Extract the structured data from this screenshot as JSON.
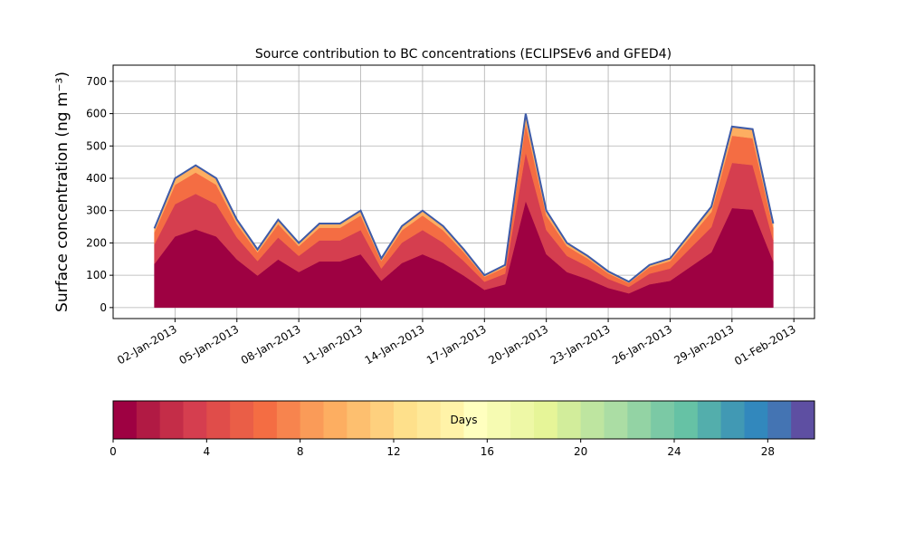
{
  "chart_data": {
    "type": "stacked-area",
    "title": "Source contribution to BC concentrations (ECLIPSEv6 and GFED4)",
    "ylabel": "Surface concentration (ng m⁻³)",
    "x": [
      "2013-01-01",
      "2013-01-02",
      "2013-01-03",
      "2013-01-04",
      "2013-01-05",
      "2013-01-06",
      "2013-01-07",
      "2013-01-08",
      "2013-01-09",
      "2013-01-10",
      "2013-01-11",
      "2013-01-12",
      "2013-01-13",
      "2013-01-14",
      "2013-01-15",
      "2013-01-16",
      "2013-01-17",
      "2013-01-18",
      "2013-01-19",
      "2013-01-20",
      "2013-01-21",
      "2013-01-22",
      "2013-01-23",
      "2013-01-24",
      "2013-01-25",
      "2013-01-26",
      "2013-01-27",
      "2013-01-28",
      "2013-01-29",
      "2013-01-30",
      "2013-01-31"
    ],
    "series": [
      {
        "color": "#9e0142",
        "values": [
          135,
          220,
          242,
          220,
          149,
          99,
          149,
          110,
          143,
          143,
          165,
          83,
          138,
          165,
          138,
          99,
          55,
          72,
          330,
          165,
          110,
          88,
          61,
          44,
          72,
          83,
          127,
          171,
          308,
          303,
          143
        ]
      },
      {
        "color": "#d53e4f",
        "values": [
          61,
          100,
          110,
          100,
          68,
          45,
          68,
          50,
          65,
          65,
          75,
          38,
          63,
          75,
          63,
          45,
          25,
          33,
          150,
          75,
          50,
          40,
          28,
          20,
          33,
          38,
          58,
          78,
          140,
          138,
          65
        ]
      },
      {
        "color": "#f46d43",
        "values": [
          37,
          60,
          66,
          60,
          41,
          27,
          41,
          30,
          39,
          39,
          45,
          23,
          38,
          45,
          38,
          27,
          15,
          20,
          90,
          45,
          30,
          24,
          17,
          12,
          20,
          23,
          35,
          47,
          84,
          83,
          39
        ]
      },
      {
        "color": "#fdae61",
        "values": [
          12,
          20,
          22,
          20,
          14,
          9,
          14,
          10,
          13,
          13,
          15,
          8,
          13,
          15,
          13,
          9,
          5,
          7,
          30,
          15,
          10,
          8,
          6,
          4,
          7,
          8,
          12,
          16,
          28,
          28,
          13
        ]
      }
    ],
    "outline_color": "#3e5ba8",
    "xlim": [
      "2012-12-30",
      "2013-02-02"
    ],
    "xticks": [
      {
        "value": "2013-01-02",
        "label": "02-Jan-2013"
      },
      {
        "value": "2013-01-05",
        "label": "05-Jan-2013"
      },
      {
        "value": "2013-01-08",
        "label": "08-Jan-2013"
      },
      {
        "value": "2013-01-11",
        "label": "11-Jan-2013"
      },
      {
        "value": "2013-01-14",
        "label": "14-Jan-2013"
      },
      {
        "value": "2013-01-17",
        "label": "17-Jan-2013"
      },
      {
        "value": "2013-01-20",
        "label": "20-Jan-2013"
      },
      {
        "value": "2013-01-23",
        "label": "23-Jan-2013"
      },
      {
        "value": "2013-01-26",
        "label": "26-Jan-2013"
      },
      {
        "value": "2013-01-29",
        "label": "29-Jan-2013"
      },
      {
        "value": "2013-02-01",
        "label": "01-Feb-2013"
      }
    ],
    "ylim": [
      -34,
      750
    ],
    "yticks": [
      0,
      100,
      200,
      300,
      400,
      500,
      600,
      700
    ],
    "grid": true,
    "colorbar": {
      "label": "Days",
      "lim": [
        0,
        30
      ],
      "ticks": [
        0,
        4,
        8,
        12,
        16,
        20,
        24,
        28
      ],
      "colors": [
        "#9e0142",
        "#b11a44",
        "#c42d48",
        "#d53e4f",
        "#e04d4a",
        "#ea5e47",
        "#f46d43",
        "#f7844e",
        "#fa9b58",
        "#fdae61",
        "#fdbf6f",
        "#fed07e",
        "#fee08b",
        "#fee999",
        "#fff3a8",
        "#ffffbf",
        "#f6fbb2",
        "#eef8a6",
        "#e6f598",
        "#d2ed9b",
        "#bee5a0",
        "#abdda4",
        "#93d3a4",
        "#7bc9a5",
        "#66c2a5",
        "#53aeac",
        "#4199b4",
        "#3288bd",
        "#4474b3",
        "#5e4fa2"
      ]
    }
  }
}
